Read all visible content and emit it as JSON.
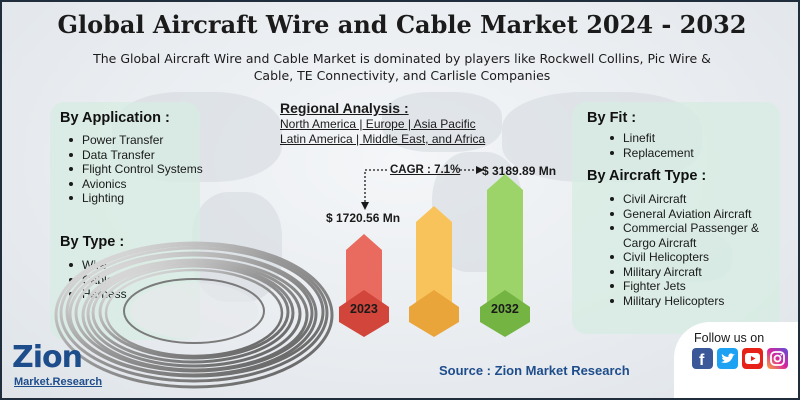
{
  "title": "Global Aircraft Wire and Cable Market 2024 - 2032",
  "subtitle": "The Global Aircraft Wire and Cable Market is dominated by players like Rockwell Collins, Pic Wire & Cable, TE Connectivity, and Carlisle Companies",
  "by_application": {
    "heading": "By Application :",
    "items": [
      "Power Transfer",
      "Data Transfer",
      "Flight Control Systems",
      "Avionics",
      "Lighting"
    ]
  },
  "by_type": {
    "heading": "By Type :",
    "items": [
      "Wire",
      "Cable",
      "Harness"
    ]
  },
  "regional": {
    "heading": "Regional Analysis :",
    "line1": "North America | Europe | Asia Pacific",
    "line2": "Latin America | Middle East, and Africa"
  },
  "market": {
    "cagr": "CAGR : 7.1%",
    "value_2023": "$ 1720.56 Mn",
    "value_2032": "$ 3189.89 Mn",
    "year_start": "2023",
    "year_end": "2032"
  },
  "by_fit": {
    "heading": "By Fit :",
    "items": [
      "Linefit",
      "Replacement"
    ]
  },
  "by_aircraft_type": {
    "heading": "By Aircraft Type :",
    "items": [
      "Civil Aircraft",
      "General Aviation Aircraft",
      "Commercial Passenger & Cargo Aircraft",
      "Civil Helicopters",
      "Military Aircraft",
      "Fighter Jets",
      "Military Helicopters"
    ]
  },
  "source": "Source : Zion Market Research",
  "follow_us": "Follow us on",
  "social_icons": [
    "facebook-icon",
    "twitter-icon",
    "youtube-icon",
    "instagram-icon"
  ],
  "logo": {
    "main": "Zion",
    "sub": "Market.Research"
  },
  "colors": {
    "bar_2023": "#e96a5e",
    "bar_mid": "#f9c35c",
    "bar_2032": "#9cd46a",
    "brand_blue": "#1e4d8c",
    "panel": "#d6ece2"
  }
}
